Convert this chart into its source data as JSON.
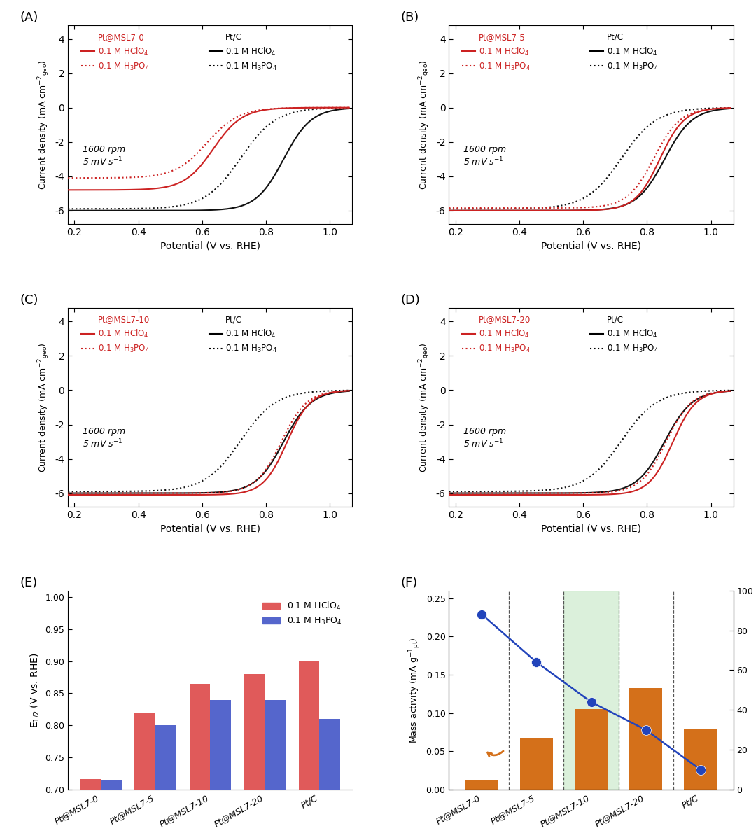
{
  "red_color": "#cc2222",
  "black_color": "#111111",
  "xlabel": "Potential (V vs. RHE)",
  "categories_EF": [
    "Pt@MSL7-0",
    "Pt@MSL7-5",
    "Pt@MSL7-10",
    "Pt@MSL7-20",
    "Pt/C"
  ],
  "E_red": [
    0.716,
    0.82,
    0.865,
    0.88,
    0.9
  ],
  "E_blue": [
    0.715,
    0.8,
    0.84,
    0.84,
    0.81
  ],
  "mass_activity_orange": [
    0.013,
    0.068,
    0.105,
    0.133,
    0.08
  ],
  "mass_dots_right_pct": [
    88,
    64,
    44,
    30,
    10
  ],
  "orange_color": "#d4701a",
  "blue_dot_color": "#2244bb",
  "green_bg_color": "#cceacc",
  "red_bar_color": "#e05a5a",
  "blue_bar_color": "#5566cc",
  "rpm_annotation": "1600 rpm\n5 mV s⁻¹"
}
